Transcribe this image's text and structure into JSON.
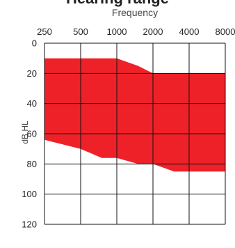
{
  "title": "Hearing range",
  "chart_data": {
    "type": "area",
    "title": "Hearing range",
    "xlabel": "Frequency",
    "ylabel": "dB HL",
    "x_scale": "log2",
    "x_ticks": [
      250,
      500,
      1000,
      2000,
      4000,
      8000
    ],
    "x_tick_labels": [
      "250",
      "500",
      "1000",
      "2000",
      "4000",
      "8000"
    ],
    "x_axis_position": "top",
    "y_ticks": [
      0,
      20,
      40,
      60,
      80,
      100,
      120
    ],
    "y_tick_labels": [
      "0",
      "20",
      "40",
      "60",
      "80",
      "100",
      "120"
    ],
    "ylim": [
      0,
      120
    ],
    "y_inverted": true,
    "grid": true,
    "fill_color": "#ee2128",
    "series": [
      {
        "upper_x": [
          250,
          1000,
          1500,
          2000,
          8000
        ],
        "upper_y": [
          10,
          10,
          15,
          20,
          20
        ],
        "lower_x": [
          250,
          500,
          750,
          1000,
          1500,
          2000,
          3000,
          8000
        ],
        "lower_y": [
          64,
          70,
          76,
          76,
          80,
          80,
          85,
          85
        ]
      }
    ]
  }
}
